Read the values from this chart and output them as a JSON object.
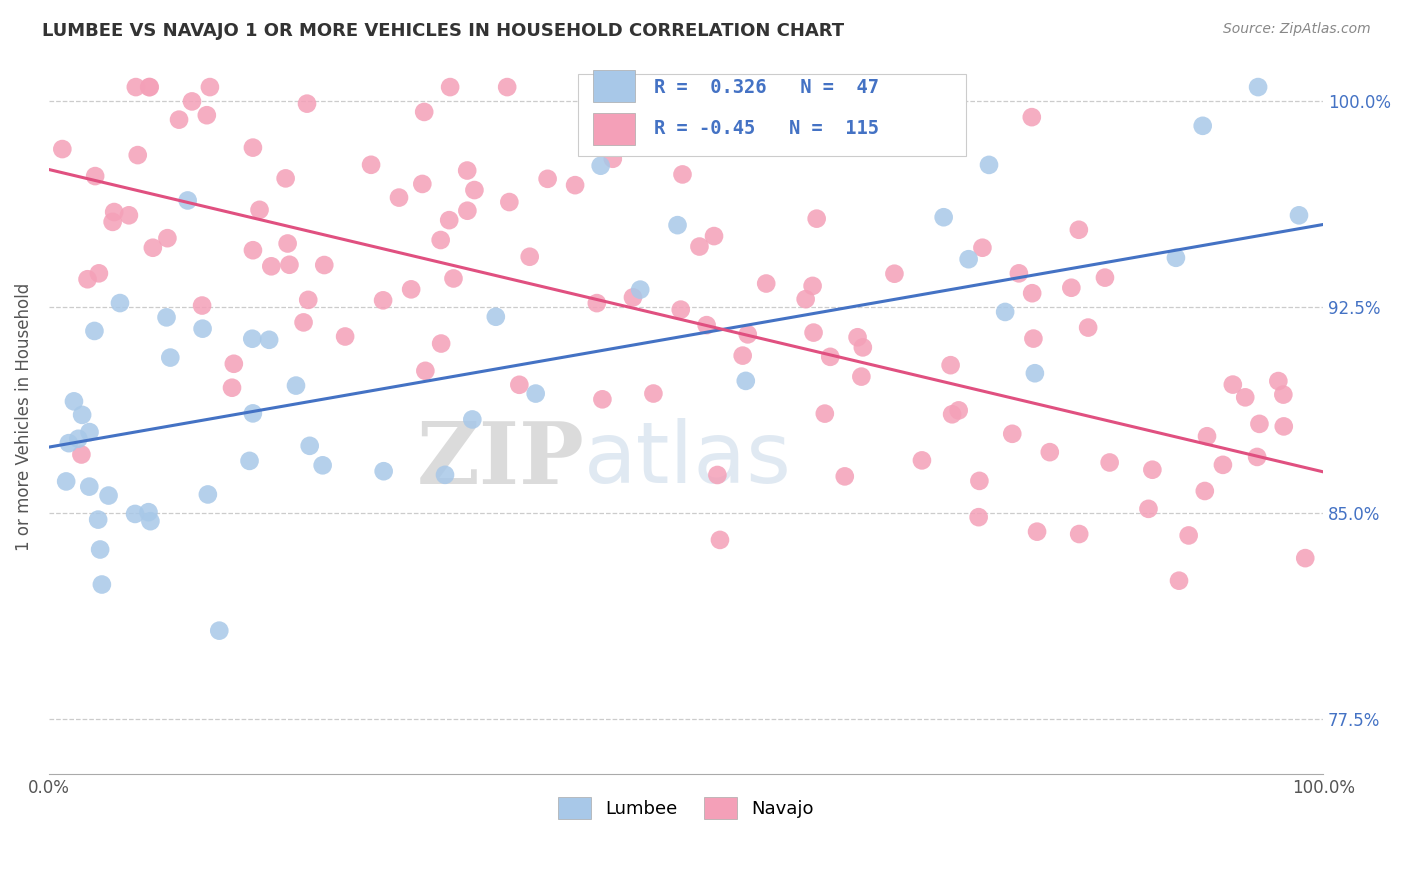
{
  "title": "LUMBEE VS NAVAJO 1 OR MORE VEHICLES IN HOUSEHOLD CORRELATION CHART",
  "source": "Source: ZipAtlas.com",
  "ylabel": "1 or more Vehicles in Household",
  "xlim": [
    0,
    1
  ],
  "ylim": [
    0.755,
    1.015
  ],
  "yticks": [
    0.775,
    0.85,
    0.925,
    1.0
  ],
  "ytick_labels": [
    "77.5%",
    "85.0%",
    "92.5%",
    "100.0%"
  ],
  "lumbee_R": 0.326,
  "lumbee_N": 47,
  "navajo_R": -0.45,
  "navajo_N": 115,
  "lumbee_color": "#a8c8e8",
  "navajo_color": "#f4a0b8",
  "lumbee_line_color": "#4472c4",
  "navajo_line_color": "#e05080",
  "lumbee_line_y0": 0.874,
  "lumbee_line_y1": 0.955,
  "navajo_line_y0": 0.975,
  "navajo_line_y1": 0.865,
  "background_color": "#ffffff",
  "watermark_zip": "ZIP",
  "watermark_atlas": "atlas",
  "lumbee_seed": 77,
  "navajo_seed": 42
}
